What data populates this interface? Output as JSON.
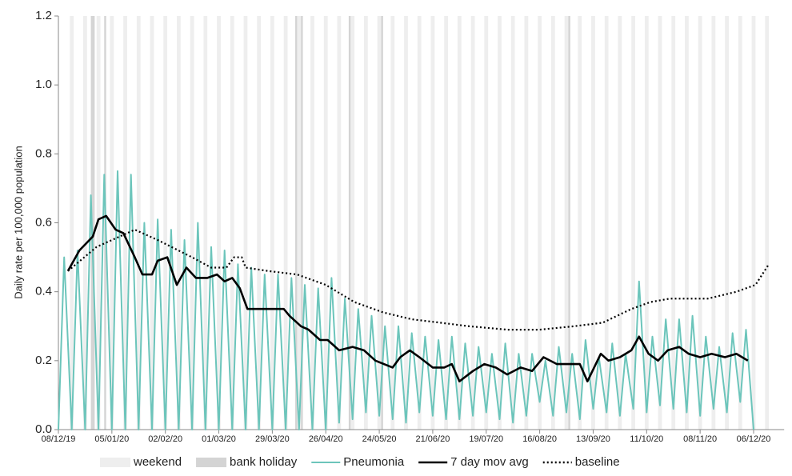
{
  "chart_data": {
    "type": "line",
    "y_label": "Daily rate per 100,000 population",
    "xlim": [
      0,
      380
    ],
    "ylim": [
      0,
      1.2
    ],
    "xticks": [
      {
        "value": 0,
        "label": "08/12/19"
      },
      {
        "value": 28,
        "label": "05/01/20"
      },
      {
        "value": 56,
        "label": "02/02/20"
      },
      {
        "value": 84,
        "label": "01/03/20"
      },
      {
        "value": 112,
        "label": "29/03/20"
      },
      {
        "value": 140,
        "label": "26/04/20"
      },
      {
        "value": 168,
        "label": "24/05/20"
      },
      {
        "value": 196,
        "label": "21/06/20"
      },
      {
        "value": 224,
        "label": "19/07/20"
      },
      {
        "value": 252,
        "label": "16/08/20"
      },
      {
        "value": 280,
        "label": "13/09/20"
      },
      {
        "value": 308,
        "label": "11/10/20"
      },
      {
        "value": 336,
        "label": "08/11/20"
      },
      {
        "value": 364,
        "label": "06/12/20"
      }
    ],
    "yticks": [
      {
        "value": 0,
        "label": "0.0"
      },
      {
        "value": 0.2,
        "label": "0.2"
      },
      {
        "value": 0.4,
        "label": "0.4"
      },
      {
        "value": 0.6,
        "label": "0.6"
      },
      {
        "value": 0.8,
        "label": "0.8"
      },
      {
        "value": 1,
        "label": "1.0"
      },
      {
        "value": 1.2,
        "label": "1.2"
      }
    ],
    "bands": [
      {
        "name": "weekend",
        "color": "#eeeeee",
        "x": [
          6,
          13,
          20,
          27,
          34,
          41,
          48,
          55,
          62,
          69,
          76,
          83,
          90,
          97,
          104,
          111,
          118,
          125,
          132,
          139,
          146,
          153,
          160,
          167,
          174,
          181,
          188,
          195,
          202,
          209,
          216,
          223,
          230,
          237,
          244,
          251,
          258,
          265,
          272,
          279,
          286,
          293,
          300,
          307,
          314,
          321,
          328,
          335,
          342,
          349,
          356,
          363,
          370
        ]
      },
      {
        "name": "bank holiday",
        "color": "#d4d4d4",
        "x": [
          17,
          18,
          24,
          124,
          127,
          152,
          169,
          267
        ]
      }
    ],
    "series": [
      {
        "name": "Pneumonia",
        "color": "#6cc5bb",
        "dash": "solid",
        "x": [
          0,
          3,
          7,
          10,
          14,
          17,
          21,
          24,
          28,
          31,
          35,
          38,
          42,
          45,
          49,
          52,
          56,
          59,
          63,
          66,
          70,
          73,
          77,
          80,
          84,
          87,
          91,
          94,
          98,
          101,
          105,
          108,
          112,
          115,
          119,
          122,
          126,
          129,
          133,
          136,
          140,
          143,
          147,
          150,
          154,
          157,
          161,
          164,
          168,
          171,
          175,
          178,
          182,
          185,
          189,
          192,
          196,
          199,
          203,
          206,
          210,
          213,
          217,
          220,
          224,
          227,
          231,
          234,
          238,
          241,
          245,
          248,
          252,
          255,
          259,
          262,
          266,
          269,
          273,
          276,
          280,
          283,
          287,
          290,
          294,
          297,
          301,
          304,
          308,
          311,
          315,
          318,
          322,
          325,
          329,
          332,
          336,
          339,
          343,
          346,
          350,
          353,
          357,
          360,
          364
        ],
        "values": [
          0,
          0.5,
          0,
          0.52,
          0,
          0.68,
          0,
          0.74,
          0,
          0.75,
          0,
          0.74,
          0,
          0.6,
          0,
          0.61,
          0,
          0.58,
          0,
          0.55,
          0,
          0.6,
          0,
          0.53,
          0,
          0.52,
          0,
          0.48,
          0,
          0.47,
          0,
          0.45,
          0,
          0.45,
          0,
          0.44,
          0,
          0.42,
          0,
          0.41,
          0,
          0.44,
          0.02,
          0.38,
          0.03,
          0.35,
          0.05,
          0.33,
          0.04,
          0.3,
          0.03,
          0.3,
          0.02,
          0.28,
          0.05,
          0.27,
          0.04,
          0.26,
          0.03,
          0.27,
          0.03,
          0.25,
          0.04,
          0.24,
          0.05,
          0.22,
          0.03,
          0.25,
          0.02,
          0.22,
          0.04,
          0.22,
          0.08,
          0.2,
          0.04,
          0.24,
          0.05,
          0.22,
          0.03,
          0.26,
          0.06,
          0.21,
          0.05,
          0.25,
          0.04,
          0.22,
          0.06,
          0.43,
          0.05,
          0.27,
          0.07,
          0.32,
          0.06,
          0.32,
          0.05,
          0.33,
          0.04,
          0.27,
          0.06,
          0.24,
          0.05,
          0.28,
          0.08,
          0.29,
          0
        ]
      },
      {
        "name": "7 day mov avg",
        "color": "#000000",
        "dash": "solid",
        "x": [
          5,
          11,
          18,
          21,
          25,
          30,
          34,
          40,
          44,
          49,
          52,
          57,
          62,
          67,
          72,
          78,
          83,
          87,
          91,
          95,
          99,
          106,
          112,
          118,
          121,
          127,
          131,
          137,
          141,
          147,
          154,
          160,
          166,
          175,
          179,
          184,
          189,
          196,
          202,
          206,
          210,
          217,
          223,
          229,
          235,
          242,
          248,
          254,
          261,
          267,
          273,
          277,
          284,
          288,
          294,
          300,
          304,
          309,
          314,
          319,
          325,
          330,
          336,
          342,
          349,
          355,
          361
        ],
        "values": [
          0.46,
          0.52,
          0.56,
          0.61,
          0.62,
          0.58,
          0.57,
          0.5,
          0.45,
          0.45,
          0.49,
          0.5,
          0.42,
          0.47,
          0.44,
          0.44,
          0.45,
          0.43,
          0.44,
          0.41,
          0.35,
          0.35,
          0.35,
          0.35,
          0.33,
          0.3,
          0.29,
          0.26,
          0.26,
          0.23,
          0.24,
          0.23,
          0.2,
          0.18,
          0.21,
          0.23,
          0.21,
          0.18,
          0.18,
          0.19,
          0.14,
          0.17,
          0.19,
          0.18,
          0.16,
          0.18,
          0.17,
          0.21,
          0.19,
          0.19,
          0.19,
          0.14,
          0.22,
          0.2,
          0.21,
          0.23,
          0.27,
          0.22,
          0.2,
          0.23,
          0.24,
          0.22,
          0.21,
          0.22,
          0.21,
          0.22,
          0.2
        ]
      },
      {
        "name": "baseline",
        "color": "#000000",
        "dash": "dotted",
        "x": [
          5,
          20,
          40,
          52,
          70,
          80,
          88,
          92,
          96,
          98,
          110,
          125,
          140,
          155,
          170,
          185,
          200,
          215,
          235,
          252,
          270,
          285,
          300,
          310,
          320,
          340,
          355,
          365,
          372
        ],
        "values": [
          0.46,
          0.53,
          0.58,
          0.55,
          0.5,
          0.47,
          0.47,
          0.5,
          0.5,
          0.47,
          0.46,
          0.45,
          0.42,
          0.37,
          0.34,
          0.32,
          0.31,
          0.3,
          0.29,
          0.29,
          0.3,
          0.31,
          0.35,
          0.37,
          0.38,
          0.38,
          0.4,
          0.42,
          0.48
        ]
      }
    ]
  }
}
